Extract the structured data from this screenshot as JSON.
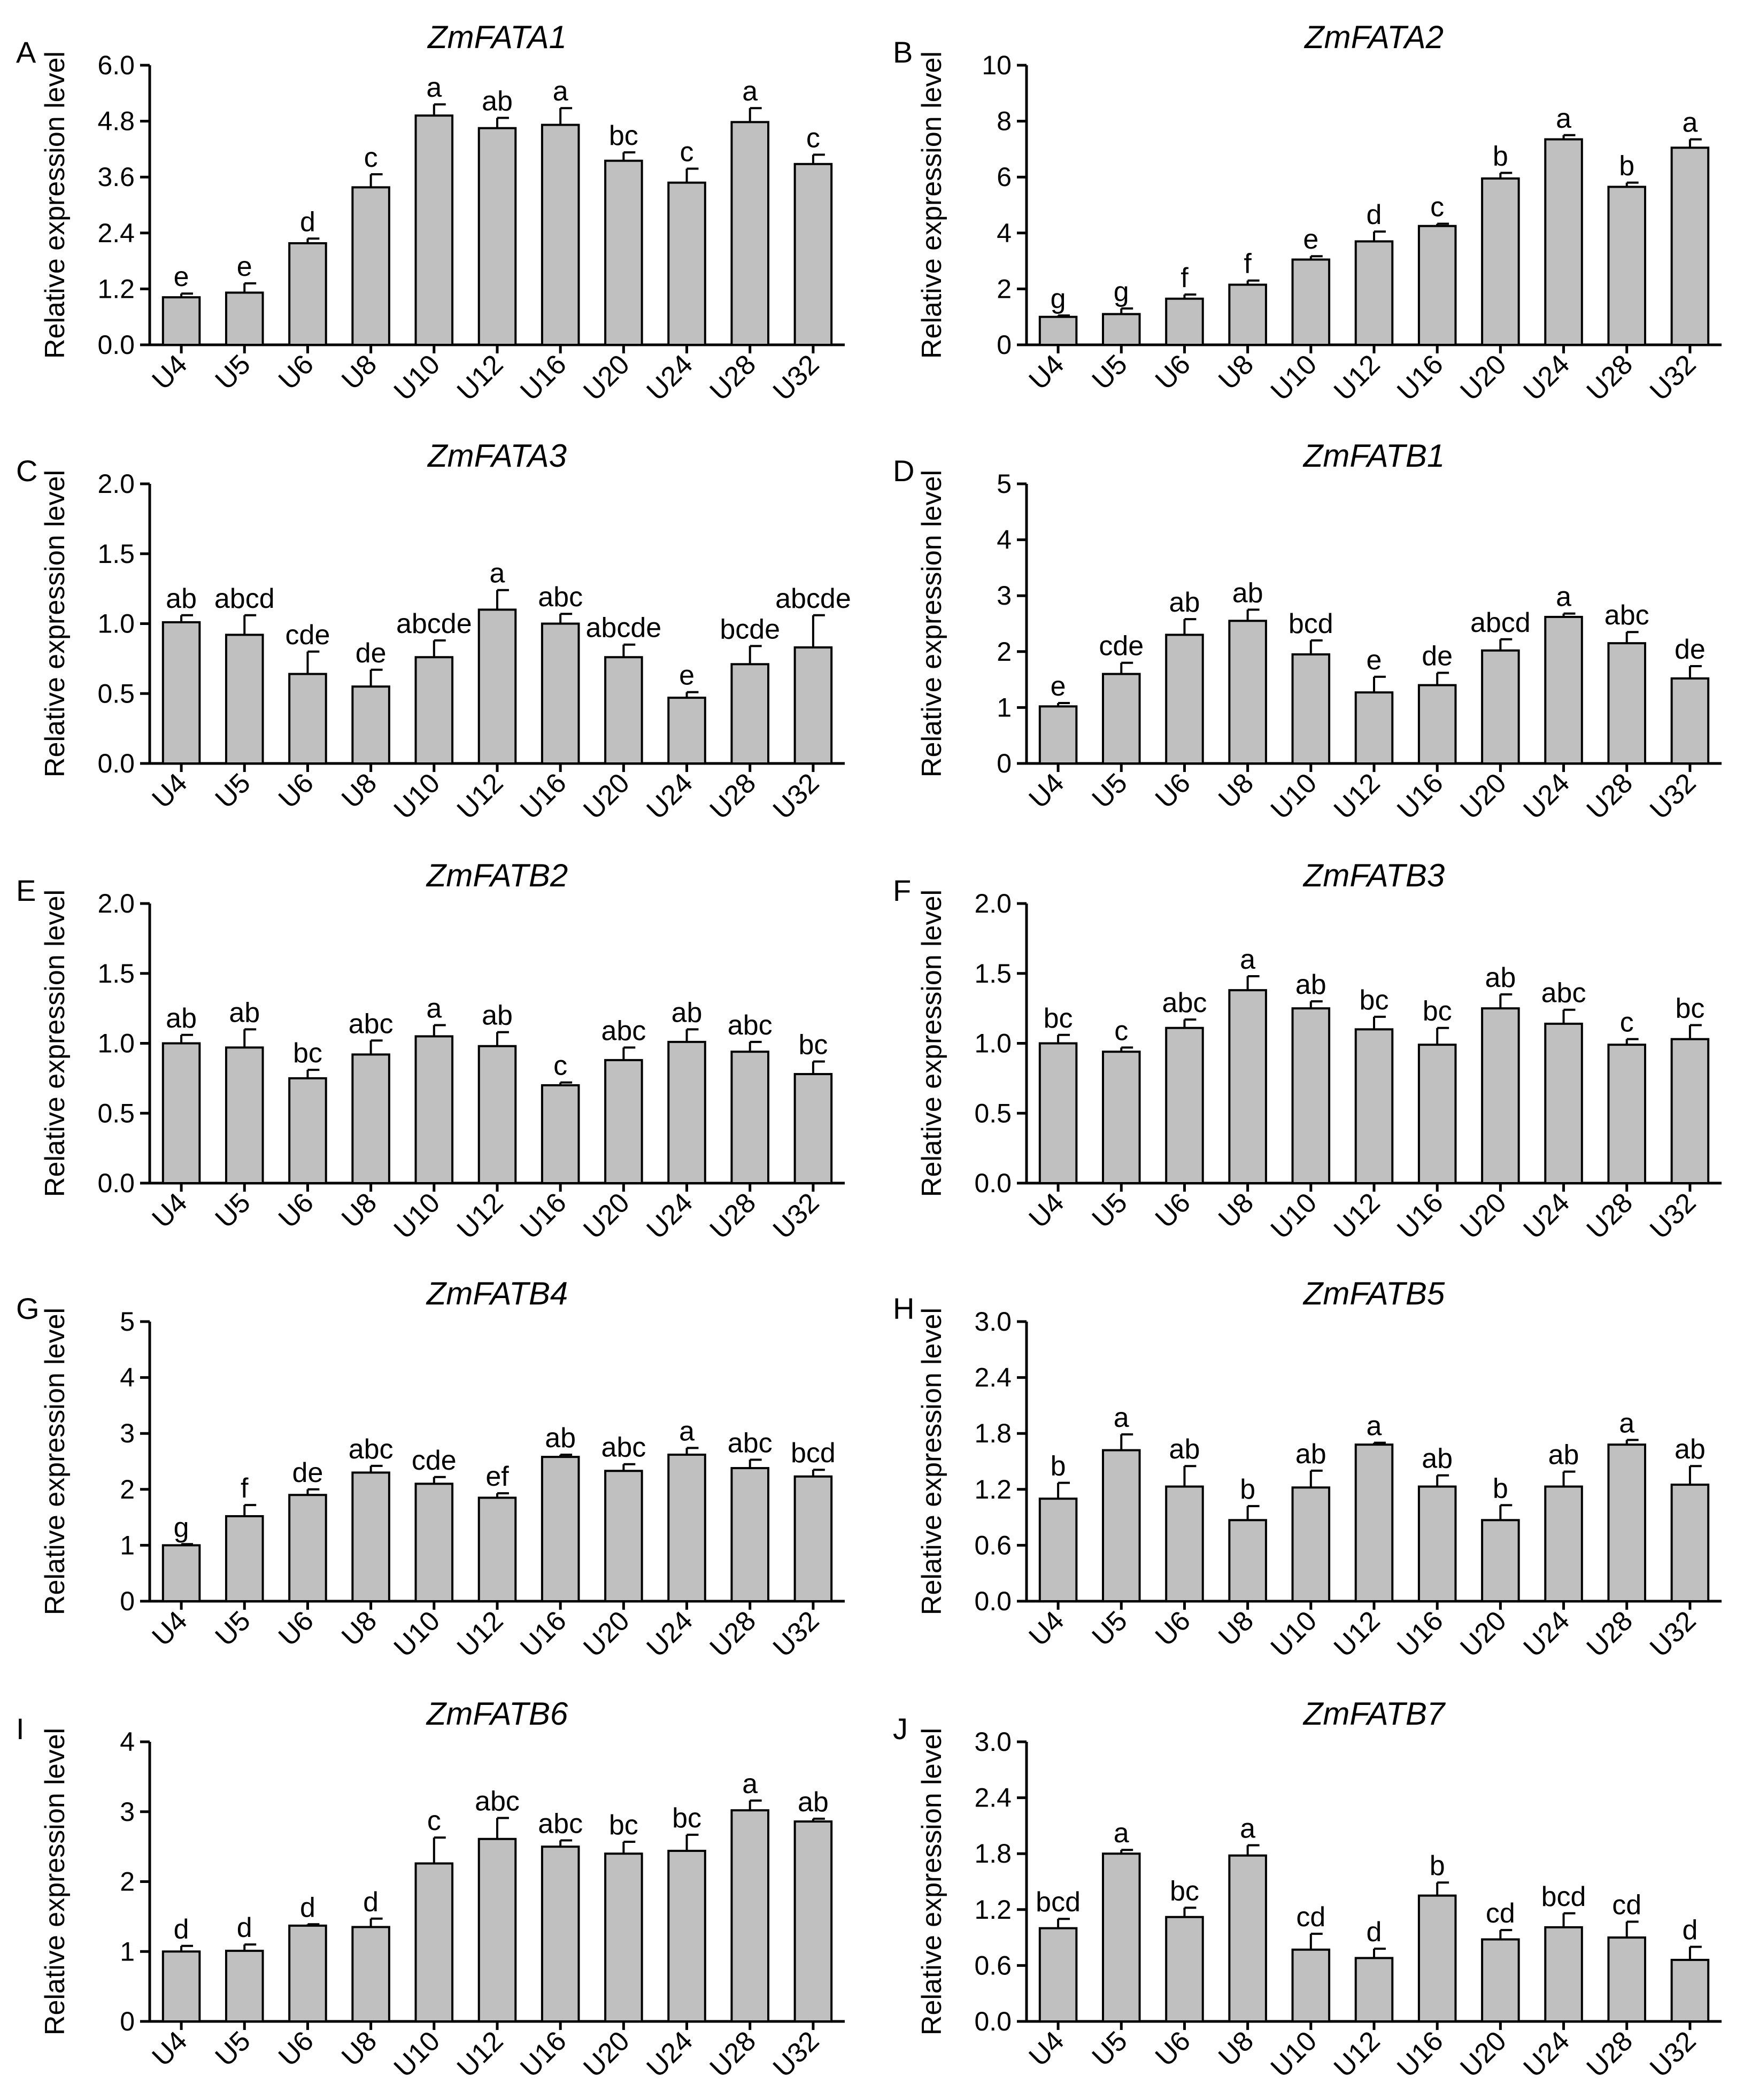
{
  "chart_data": [
    {
      "panel": "A",
      "type": "bar",
      "title": "ZmFATA1",
      "ylabel": "Relative expression level",
      "ylim": [
        0,
        6.0
      ],
      "yticks": [
        "0.0",
        "1.2",
        "2.4",
        "3.6",
        "4.8",
        "6.0"
      ],
      "categories": [
        "U4",
        "U5",
        "U6",
        "U8",
        "U10",
        "U12",
        "U16",
        "U20",
        "U24",
        "U28",
        "U32"
      ],
      "values": [
        1.02,
        1.12,
        2.18,
        3.38,
        4.92,
        4.65,
        4.72,
        3.95,
        3.48,
        4.78,
        3.88
      ],
      "errors": [
        0.08,
        0.2,
        0.1,
        0.28,
        0.24,
        0.22,
        0.36,
        0.18,
        0.3,
        0.3,
        0.2
      ],
      "labels": [
        "e",
        "e",
        "d",
        "c",
        "a",
        "ab",
        "a",
        "bc",
        "c",
        "a",
        "c"
      ]
    },
    {
      "panel": "B",
      "type": "bar",
      "title": "ZmFATA2",
      "ylabel": "Relative expression level",
      "ylim": [
        0,
        10
      ],
      "yticks": [
        "0",
        "2",
        "4",
        "6",
        "8",
        "10"
      ],
      "categories": [
        "U4",
        "U5",
        "U6",
        "U8",
        "U10",
        "U12",
        "U16",
        "U20",
        "U24",
        "U28",
        "U32"
      ],
      "values": [
        1.0,
        1.1,
        1.65,
        2.15,
        3.05,
        3.7,
        4.25,
        5.95,
        7.35,
        5.65,
        7.05
      ],
      "errors": [
        0.05,
        0.2,
        0.15,
        0.15,
        0.12,
        0.35,
        0.08,
        0.2,
        0.15,
        0.15,
        0.3
      ],
      "labels": [
        "g",
        "g",
        "f",
        "f",
        "e",
        "d",
        "c",
        "b",
        "a",
        "b",
        "a"
      ]
    },
    {
      "panel": "C",
      "type": "bar",
      "title": "ZmFATA3",
      "ylabel": "Relative expression level",
      "ylim": [
        0,
        2.0
      ],
      "yticks": [
        "0.0",
        "0.5",
        "1.0",
        "1.5",
        "2.0"
      ],
      "categories": [
        "U4",
        "U5",
        "U6",
        "U8",
        "U10",
        "U12",
        "U16",
        "U20",
        "U24",
        "U28",
        "U32"
      ],
      "values": [
        1.01,
        0.92,
        0.64,
        0.55,
        0.76,
        1.1,
        1.0,
        0.76,
        0.47,
        0.71,
        0.83
      ],
      "errors": [
        0.05,
        0.14,
        0.16,
        0.12,
        0.12,
        0.14,
        0.07,
        0.09,
        0.04,
        0.13,
        0.23
      ],
      "labels": [
        "ab",
        "abcd",
        "cde",
        "de",
        "abcde",
        "a",
        "abc",
        "abcde",
        "e",
        "bcde",
        "abcde"
      ]
    },
    {
      "panel": "D",
      "type": "bar",
      "title": "ZmFATB1",
      "ylabel": "Relative expression level",
      "ylim": [
        0,
        5
      ],
      "yticks": [
        "0",
        "1",
        "2",
        "3",
        "4",
        "5"
      ],
      "categories": [
        "U4",
        "U5",
        "U6",
        "U8",
        "U10",
        "U12",
        "U16",
        "U20",
        "U24",
        "U28",
        "U32"
      ],
      "values": [
        1.02,
        1.6,
        2.3,
        2.55,
        1.95,
        1.27,
        1.4,
        2.02,
        2.62,
        2.15,
        1.52
      ],
      "errors": [
        0.06,
        0.2,
        0.28,
        0.2,
        0.25,
        0.28,
        0.22,
        0.2,
        0.06,
        0.2,
        0.22
      ],
      "labels": [
        "e",
        "cde",
        "ab",
        "ab",
        "bcd",
        "e",
        "de",
        "abcd",
        "a",
        "abc",
        "de"
      ]
    },
    {
      "panel": "E",
      "type": "bar",
      "title": "ZmFATB2",
      "ylabel": "Relative expression level",
      "ylim": [
        0,
        2.0
      ],
      "yticks": [
        "0.0",
        "0.5",
        "1.0",
        "1.5",
        "2.0"
      ],
      "categories": [
        "U4",
        "U5",
        "U6",
        "U8",
        "U10",
        "U12",
        "U16",
        "U20",
        "U24",
        "U28",
        "U32"
      ],
      "values": [
        1.0,
        0.97,
        0.75,
        0.92,
        1.05,
        0.98,
        0.7,
        0.88,
        1.01,
        0.94,
        0.78
      ],
      "errors": [
        0.06,
        0.13,
        0.06,
        0.1,
        0.08,
        0.1,
        0.02,
        0.09,
        0.09,
        0.07,
        0.09
      ],
      "labels": [
        "ab",
        "ab",
        "bc",
        "abc",
        "a",
        "ab",
        "c",
        "abc",
        "ab",
        "abc",
        "bc"
      ]
    },
    {
      "panel": "F",
      "type": "bar",
      "title": "ZmFATB3",
      "ylabel": "Relative expression level",
      "ylim": [
        0,
        2.0
      ],
      "yticks": [
        "0.0",
        "0.5",
        "1.0",
        "1.5",
        "2.0"
      ],
      "categories": [
        "U4",
        "U5",
        "U6",
        "U8",
        "U10",
        "U12",
        "U16",
        "U20",
        "U24",
        "U28",
        "U32"
      ],
      "values": [
        1.0,
        0.94,
        1.11,
        1.38,
        1.25,
        1.1,
        0.99,
        1.25,
        1.14,
        0.99,
        1.03
      ],
      "errors": [
        0.06,
        0.03,
        0.06,
        0.1,
        0.05,
        0.09,
        0.12,
        0.1,
        0.1,
        0.04,
        0.1
      ],
      "labels": [
        "bc",
        "c",
        "abc",
        "a",
        "ab",
        "bc",
        "bc",
        "ab",
        "abc",
        "c",
        "bc"
      ]
    },
    {
      "panel": "G",
      "type": "bar",
      "title": "ZmFATB4",
      "ylabel": "Relative expression level",
      "ylim": [
        0,
        5
      ],
      "yticks": [
        "0",
        "1",
        "2",
        "3",
        "4",
        "5"
      ],
      "categories": [
        "U4",
        "U5",
        "U6",
        "U8",
        "U10",
        "U12",
        "U16",
        "U20",
        "U24",
        "U28",
        "U32"
      ],
      "values": [
        1.0,
        1.52,
        1.9,
        2.3,
        2.1,
        1.85,
        2.58,
        2.33,
        2.62,
        2.38,
        2.23
      ],
      "errors": [
        0.02,
        0.2,
        0.1,
        0.12,
        0.12,
        0.08,
        0.04,
        0.12,
        0.12,
        0.15,
        0.12
      ],
      "labels": [
        "g",
        "f",
        "de",
        "abc",
        "cde",
        "ef",
        "ab",
        "abc",
        "a",
        "abc",
        "bcd"
      ]
    },
    {
      "panel": "H",
      "type": "bar",
      "title": "ZmFATB5",
      "ylabel": "Relative expression level",
      "ylim": [
        0,
        3.0
      ],
      "yticks": [
        "0.0",
        "0.6",
        "1.2",
        "1.8",
        "2.4",
        "3.0"
      ],
      "categories": [
        "U4",
        "U5",
        "U6",
        "U8",
        "U10",
        "U12",
        "U16",
        "U20",
        "U24",
        "U28",
        "U32"
      ],
      "values": [
        1.1,
        1.62,
        1.23,
        0.87,
        1.22,
        1.68,
        1.23,
        0.87,
        1.23,
        1.68,
        1.25
      ],
      "errors": [
        0.17,
        0.17,
        0.22,
        0.15,
        0.18,
        0.02,
        0.12,
        0.16,
        0.16,
        0.05,
        0.2
      ],
      "labels": [
        "b",
        "a",
        "ab",
        "b",
        "ab",
        "a",
        "ab",
        "b",
        "ab",
        "a",
        "ab"
      ]
    },
    {
      "panel": "I",
      "type": "bar",
      "title": "ZmFATB6",
      "ylabel": "Relative expression level",
      "ylim": [
        0,
        4
      ],
      "yticks": [
        "0",
        "1",
        "2",
        "3",
        "4"
      ],
      "categories": [
        "U4",
        "U5",
        "U6",
        "U8",
        "U10",
        "U12",
        "U16",
        "U20",
        "U24",
        "U28",
        "U32"
      ],
      "values": [
        1.0,
        1.01,
        1.37,
        1.35,
        2.26,
        2.61,
        2.5,
        2.4,
        2.44,
        3.02,
        2.86
      ],
      "errors": [
        0.08,
        0.09,
        0.02,
        0.12,
        0.37,
        0.3,
        0.09,
        0.17,
        0.23,
        0.14,
        0.04
      ],
      "labels": [
        "d",
        "d",
        "d",
        "d",
        "c",
        "abc",
        "abc",
        "bc",
        "bc",
        "a",
        "ab"
      ]
    },
    {
      "panel": "J",
      "type": "bar",
      "title": "ZmFATB7",
      "ylabel": "Relative expression level",
      "ylim": [
        0,
        3.0
      ],
      "yticks": [
        "0.0",
        "0.6",
        "1.2",
        "1.8",
        "2.4",
        "3.0"
      ],
      "categories": [
        "U4",
        "U5",
        "U6",
        "U8",
        "U10",
        "U12",
        "U16",
        "U20",
        "U24",
        "U28",
        "U32"
      ],
      "values": [
        1.0,
        1.8,
        1.12,
        1.78,
        0.77,
        0.68,
        1.35,
        0.88,
        1.01,
        0.9,
        0.66
      ],
      "errors": [
        0.1,
        0.04,
        0.1,
        0.11,
        0.17,
        0.1,
        0.14,
        0.1,
        0.15,
        0.17,
        0.14
      ],
      "labels": [
        "bcd",
        "a",
        "bc",
        "a",
        "cd",
        "d",
        "b",
        "cd",
        "bcd",
        "cd",
        "d"
      ]
    }
  ]
}
